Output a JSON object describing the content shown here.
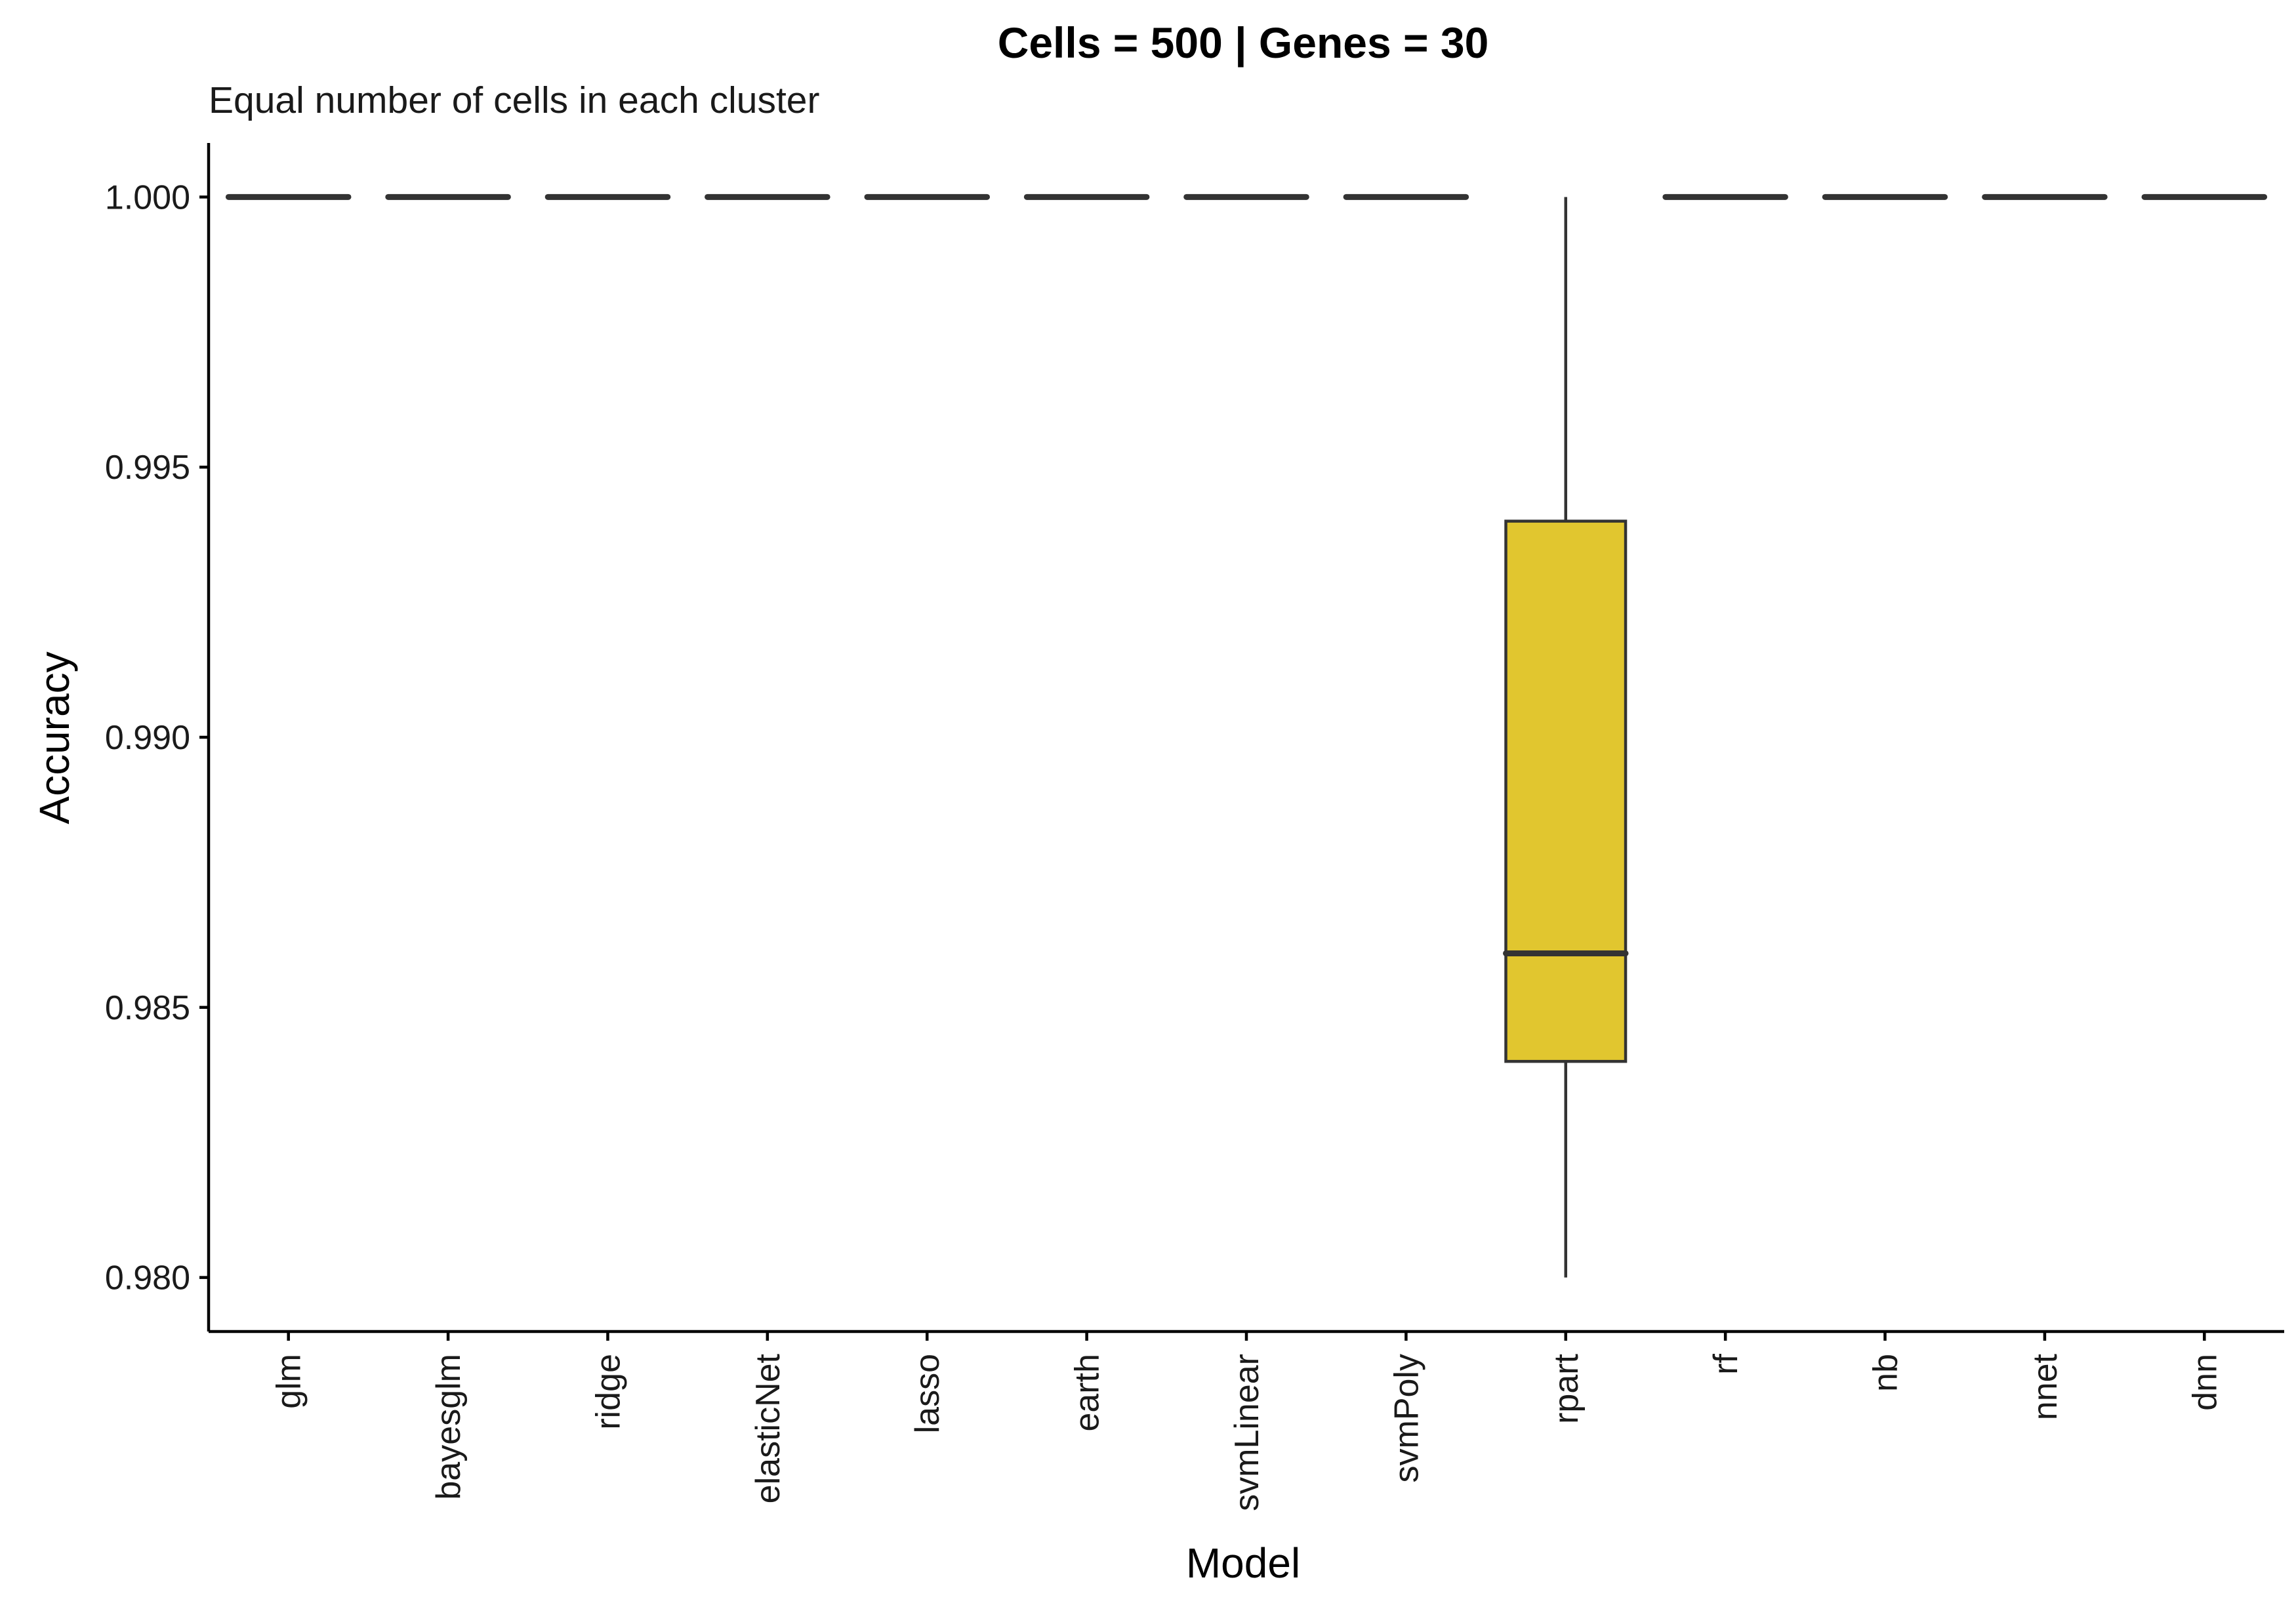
{
  "chart_data": {
    "type": "box",
    "title": "Cells = 500 | Genes = 30",
    "subtitle": "Equal number of cells in each cluster",
    "xlabel": "Model",
    "ylabel": "Accuracy",
    "ylim": [
      0.979,
      1.001
    ],
    "yticks": [
      0.98,
      0.985,
      0.99,
      0.995,
      1.0
    ],
    "ytick_labels": [
      "0.980",
      "0.985",
      "0.990",
      "0.995",
      "1.000"
    ],
    "grid": false,
    "categories": [
      "glm",
      "bayesglm",
      "ridge",
      "elasticNet",
      "lasso",
      "earth",
      "svmLinear",
      "svmPoly",
      "rpart",
      "rf",
      "nb",
      "nnet",
      "dnn"
    ],
    "boxes": [
      {
        "min": 1.0,
        "q1": 1.0,
        "median": 1.0,
        "q3": 1.0,
        "max": 1.0
      },
      {
        "min": 1.0,
        "q1": 1.0,
        "median": 1.0,
        "q3": 1.0,
        "max": 1.0
      },
      {
        "min": 1.0,
        "q1": 1.0,
        "median": 1.0,
        "q3": 1.0,
        "max": 1.0
      },
      {
        "min": 1.0,
        "q1": 1.0,
        "median": 1.0,
        "q3": 1.0,
        "max": 1.0
      },
      {
        "min": 1.0,
        "q1": 1.0,
        "median": 1.0,
        "q3": 1.0,
        "max": 1.0
      },
      {
        "min": 1.0,
        "q1": 1.0,
        "median": 1.0,
        "q3": 1.0,
        "max": 1.0
      },
      {
        "min": 1.0,
        "q1": 1.0,
        "median": 1.0,
        "q3": 1.0,
        "max": 1.0
      },
      {
        "min": 1.0,
        "q1": 1.0,
        "median": 1.0,
        "q3": 1.0,
        "max": 1.0
      },
      {
        "min": 0.98,
        "q1": 0.984,
        "median": 0.986,
        "q3": 0.994,
        "max": 1.0
      },
      {
        "min": 1.0,
        "q1": 1.0,
        "median": 1.0,
        "q3": 1.0,
        "max": 1.0
      },
      {
        "min": 1.0,
        "q1": 1.0,
        "median": 1.0,
        "q3": 1.0,
        "max": 1.0
      },
      {
        "min": 1.0,
        "q1": 1.0,
        "median": 1.0,
        "q3": 1.0,
        "max": 1.0
      },
      {
        "min": 1.0,
        "q1": 1.0,
        "median": 1.0,
        "q3": 1.0,
        "max": 1.0
      }
    ],
    "box_fill": "#E1C62F",
    "box_stroke": "#333333"
  }
}
